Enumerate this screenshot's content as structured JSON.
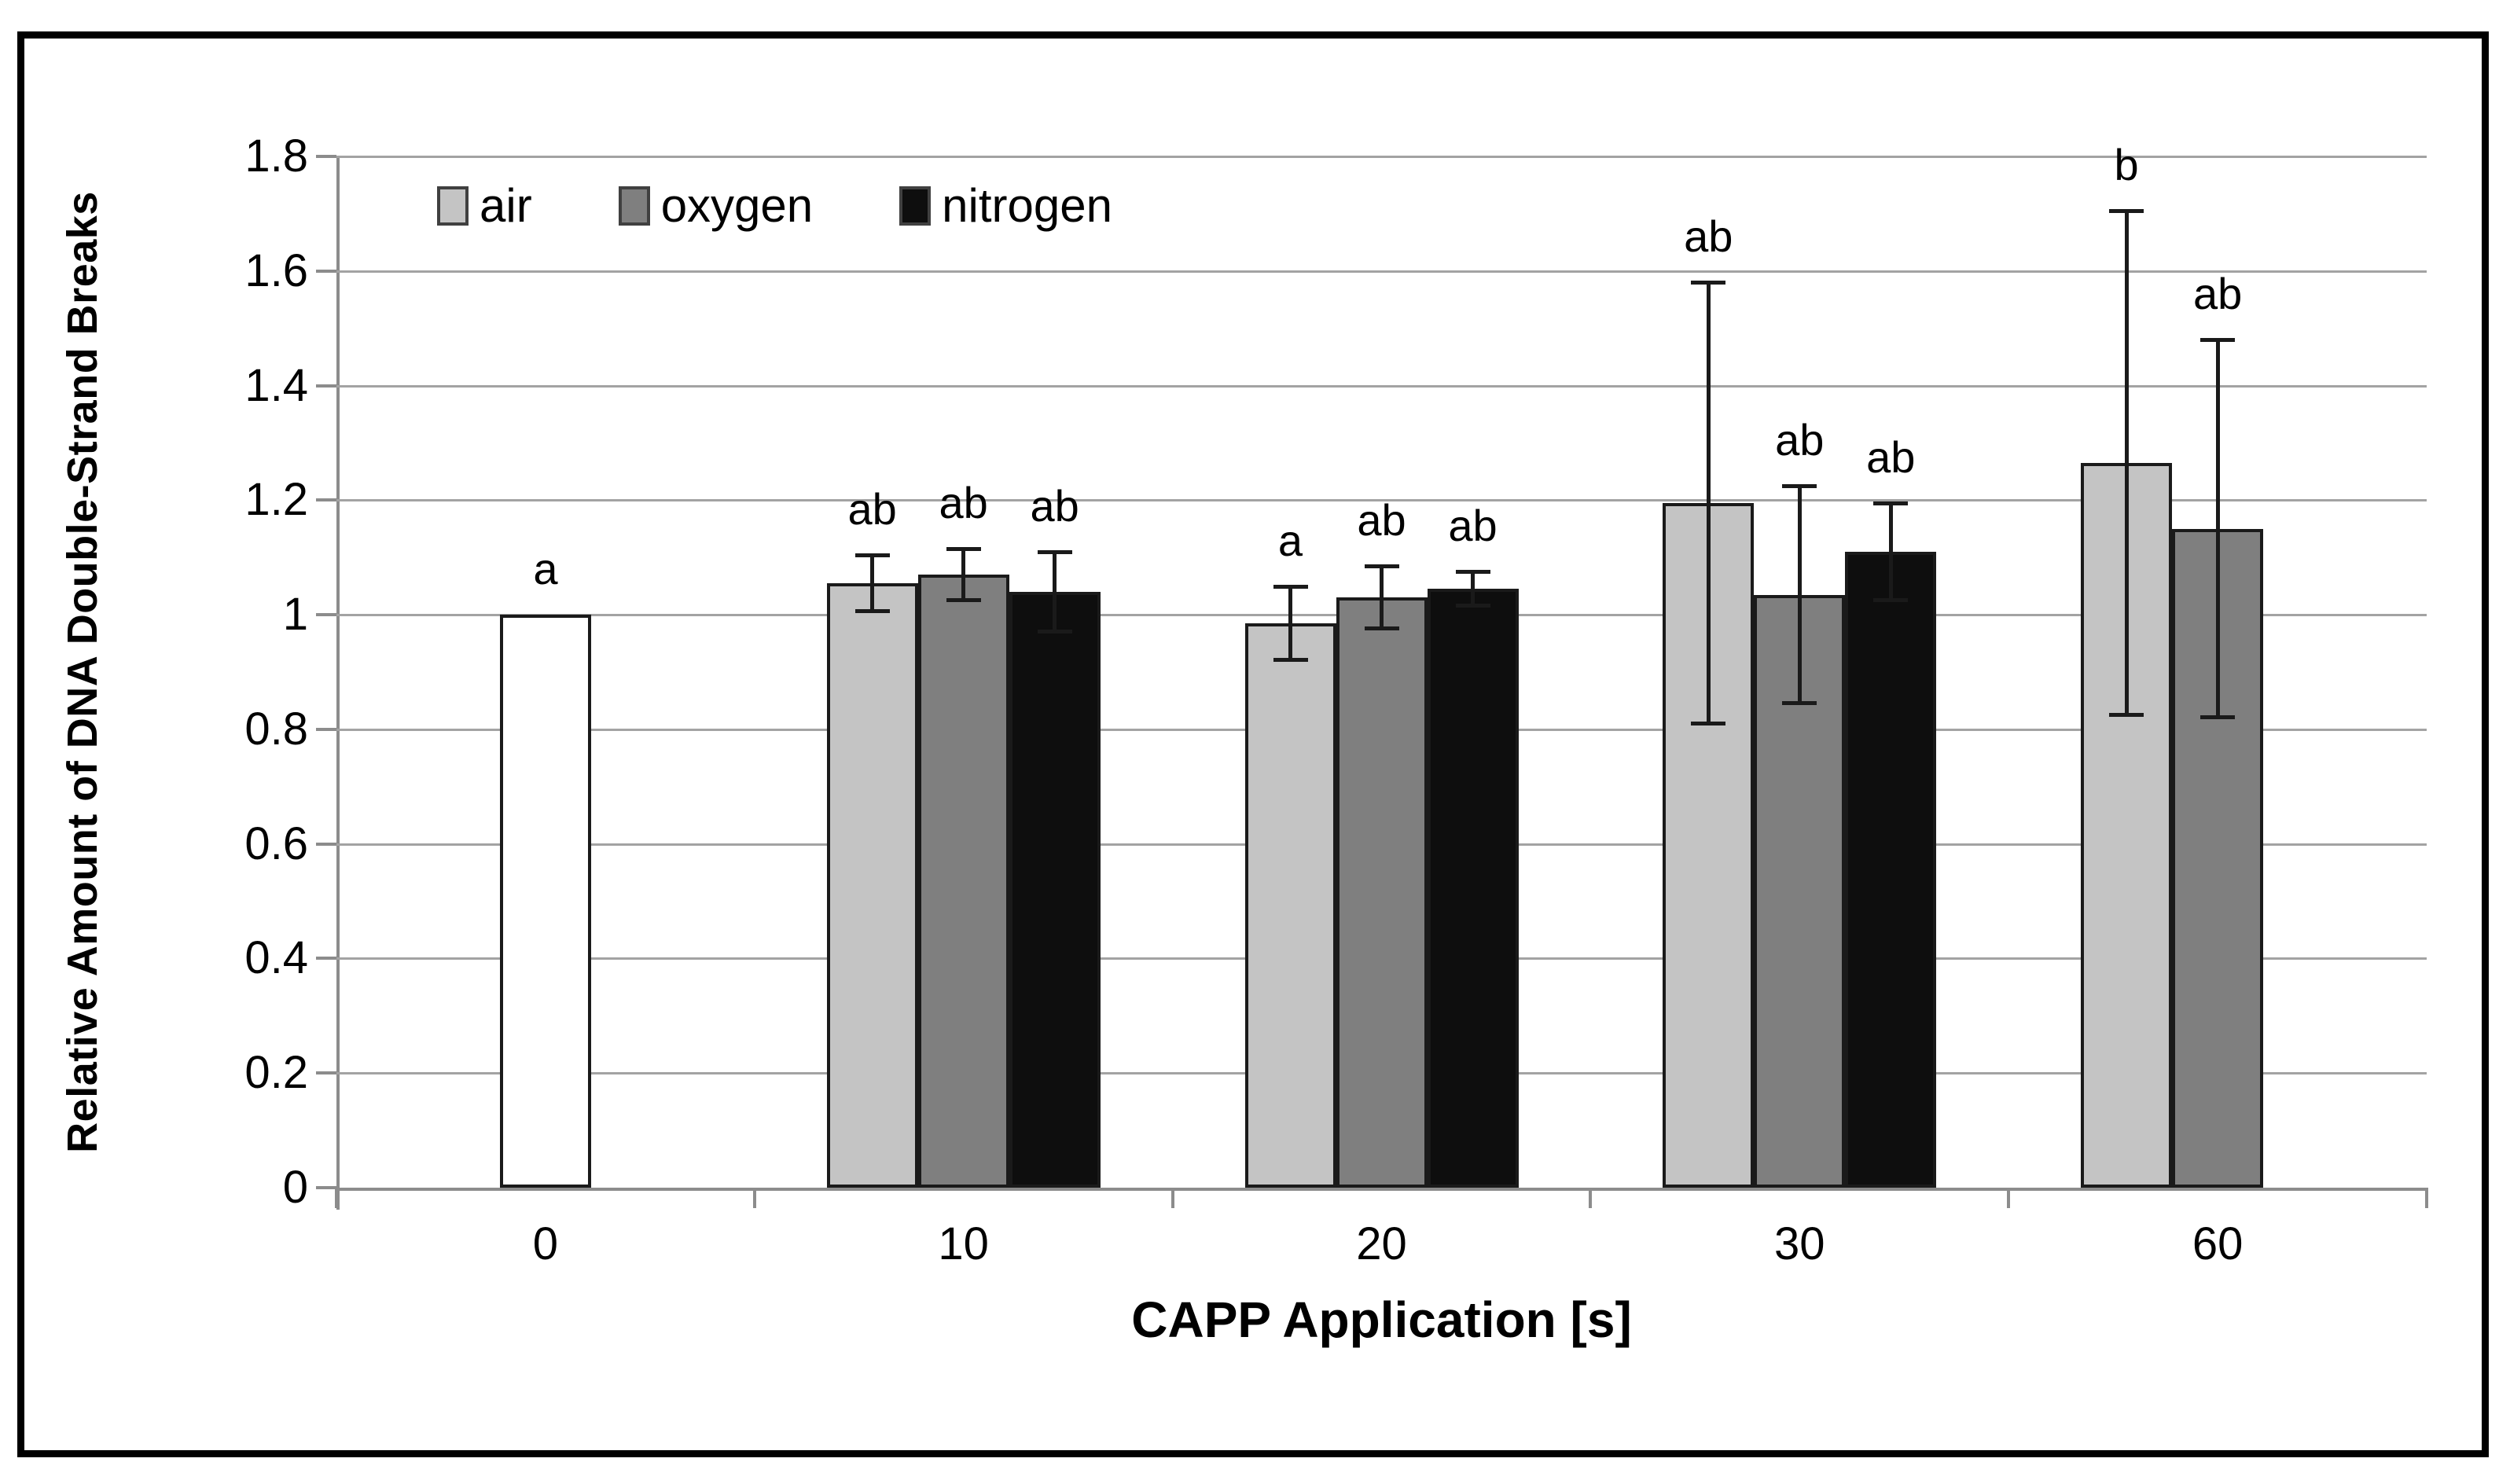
{
  "figure": {
    "background": "#ffffff",
    "border_color": "#000000",
    "gridline_color": "#a3a3a3",
    "axis_color": "#8c8c8c",
    "bar_outline_color": "#1a1a1a",
    "error_bar_color": "#1a1a1a"
  },
  "chart_data": {
    "type": "bar",
    "title": "",
    "xlabel": "CAPP Application [s]",
    "ylabel": "Relative Amount of DNA Double-Strand Breaks",
    "ylim": [
      0,
      1.8
    ],
    "ytick_step": 0.2,
    "ytick_labels": [
      "0",
      "0.2",
      "0.4",
      "0.6",
      "0.8",
      "1",
      "1.2",
      "1.4",
      "1.6",
      "1.8"
    ],
    "grid": true,
    "legend_position": "top-left-inside",
    "categories": [
      "0",
      "10",
      "20",
      "30",
      "60"
    ],
    "series": [
      {
        "name": "air",
        "color": "#c4c4c4",
        "values": [
          null,
          1.055,
          0.985,
          1.195,
          1.265
        ],
        "errors": [
          null,
          0.05,
          0.065,
          0.385,
          0.44
        ],
        "sig_labels": [
          null,
          "ab",
          "a",
          "ab",
          "b"
        ]
      },
      {
        "name": "oxygen",
        "color": "#7f7f7f",
        "values": [
          null,
          1.07,
          1.03,
          1.035,
          1.15
        ],
        "errors": [
          null,
          0.045,
          0.055,
          0.19,
          0.33
        ],
        "sig_labels": [
          null,
          "ab",
          "ab",
          "ab",
          "ab"
        ]
      },
      {
        "name": "nitrogen",
        "color": "#0e0e0e",
        "values": [
          null,
          1.04,
          1.045,
          1.11,
          null
        ],
        "errors": [
          null,
          0.07,
          0.03,
          0.085,
          null
        ],
        "sig_labels": [
          null,
          "ab",
          "ab",
          "ab",
          null
        ]
      }
    ],
    "control_bar": {
      "category": "0",
      "value": 1.0,
      "error": null,
      "sig_label": "a",
      "fill": "#ffffff"
    }
  }
}
